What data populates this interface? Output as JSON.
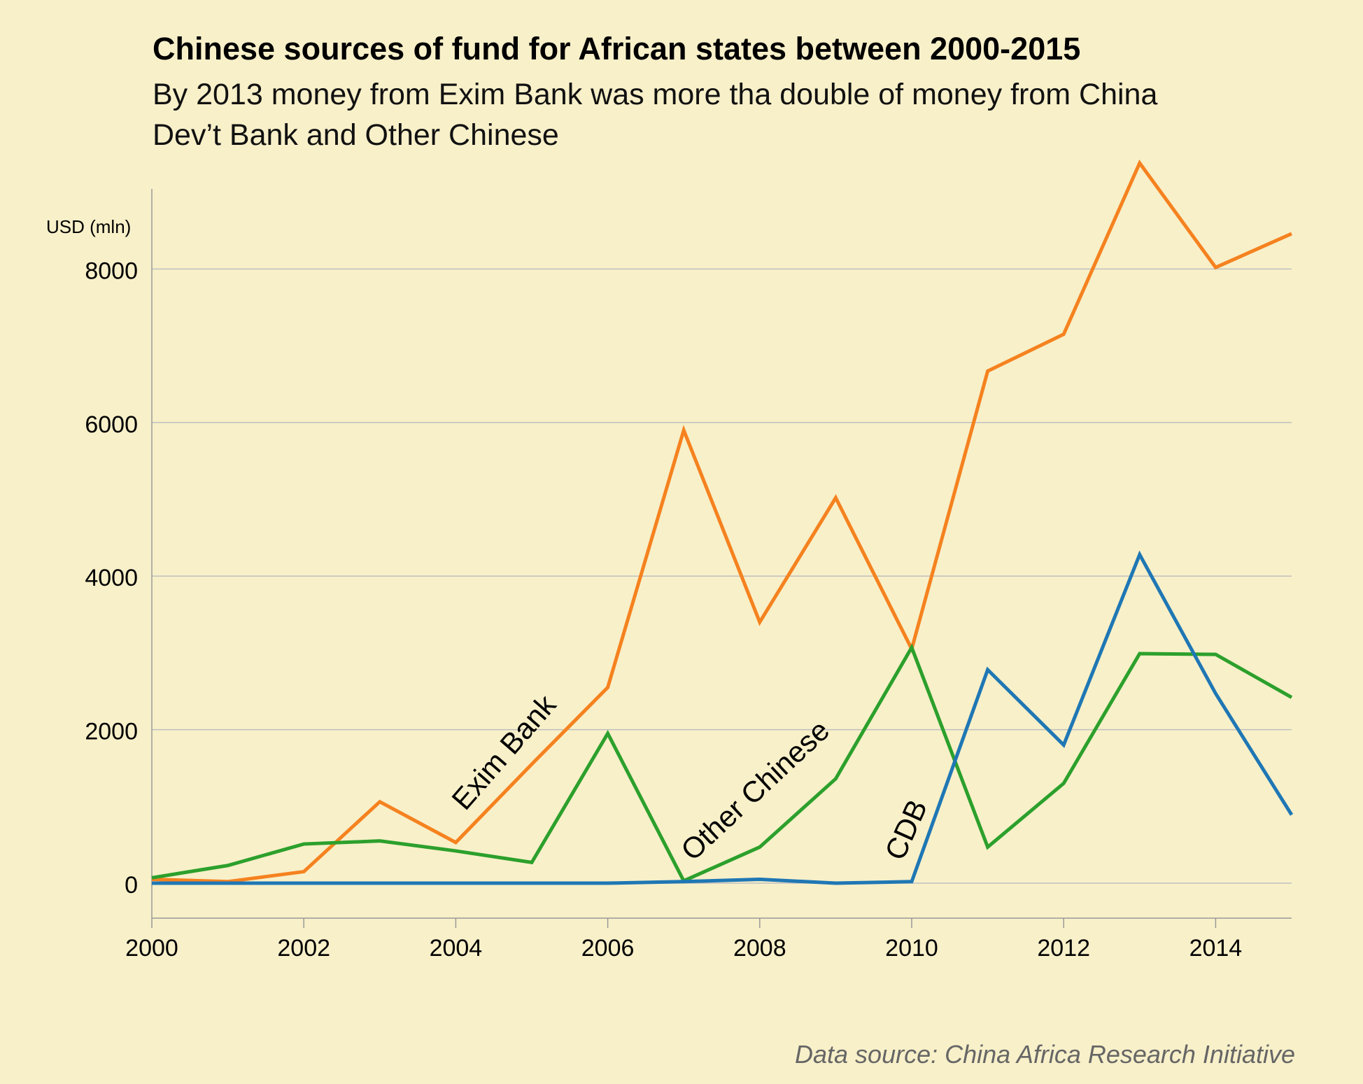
{
  "title": "Chinese sources of fund for African states between 2000-2015",
  "subtitle": "By 2013 money from Exim Bank was more tha double of money from China Dev’t Bank and Other Chinese",
  "source": "Data source: China Africa Research Initiative",
  "chart_data": {
    "type": "line",
    "ylabel": "USD (mln)",
    "xlabel": "",
    "xlim": [
      2000,
      2015
    ],
    "ylim": [
      -500,
      9200
    ],
    "x_ticks": [
      2000,
      2002,
      2004,
      2006,
      2008,
      2010,
      2012,
      2014
    ],
    "y_ticks": [
      0,
      2000,
      4000,
      6000,
      8000
    ],
    "grid": "horizontal",
    "x": [
      2000,
      2001,
      2002,
      2003,
      2004,
      2005,
      2006,
      2007,
      2008,
      2009,
      2010,
      2011,
      2012,
      2013,
      2014,
      2015
    ],
    "series": [
      {
        "name": "Exim Bank",
        "color": "#f5821f",
        "values": [
          50,
          20,
          150,
          1060,
          530,
          1550,
          2550,
          5900,
          3400,
          5020,
          3050,
          6670,
          7150,
          9380,
          8020,
          8460
        ]
      },
      {
        "name": "Other Chinese",
        "color": "#2ca02c",
        "values": [
          70,
          230,
          510,
          550,
          420,
          270,
          1950,
          30,
          470,
          1360,
          3070,
          470,
          1300,
          2990,
          2980,
          2420
        ]
      },
      {
        "name": "CDB",
        "color": "#1f77b4",
        "values": [
          0,
          0,
          0,
          0,
          0,
          0,
          0,
          20,
          50,
          0,
          20,
          2780,
          1800,
          4280,
          2470,
          890
        ]
      }
    ],
    "annotations": [
      {
        "text": "Exim Bank",
        "series": "Exim Bank"
      },
      {
        "text": "Other Chinese",
        "series": "Other Chinese"
      },
      {
        "text": "CDB",
        "series": "CDB"
      }
    ]
  }
}
